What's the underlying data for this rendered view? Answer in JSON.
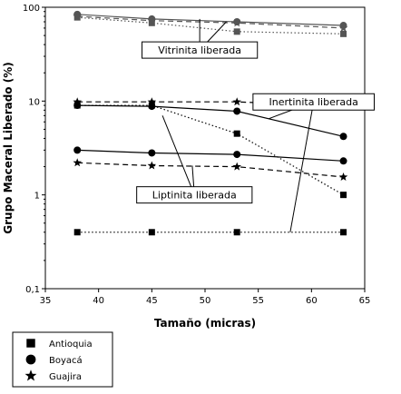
{
  "chart_data": {
    "type": "line",
    "title": "",
    "xlabel": "Tamaño (micras)",
    "ylabel": "Grupo Maceral Liberado (%)",
    "xlim": [
      35,
      65
    ],
    "ylim": [
      0.1,
      100
    ],
    "y_scale": "log",
    "x_ticks": [
      35,
      40,
      45,
      50,
      55,
      60,
      65
    ],
    "y_ticks": [
      0.1,
      1,
      10,
      100
    ],
    "y_tick_labels": [
      "0,1",
      "1",
      "10",
      "100"
    ],
    "grid": false,
    "legend_position": "bottom-left",
    "legend": [
      {
        "label": "Antioquia",
        "marker": "square"
      },
      {
        "label": "Boyacá",
        "marker": "circle"
      },
      {
        "label": "Guajira",
        "marker": "star"
      }
    ],
    "series": [
      {
        "group": "vitrinita",
        "region": "Antioquia",
        "marker": "square",
        "style": "dotted",
        "color": "#555555",
        "x": [
          38,
          45,
          53,
          63
        ],
        "y": [
          78,
          68,
          55,
          52
        ]
      },
      {
        "group": "vitrinita",
        "region": "Boyacá",
        "marker": "circle",
        "style": "solid",
        "color": "#555555",
        "x": [
          38,
          45,
          53,
          63
        ],
        "y": [
          84,
          75,
          70,
          64
        ]
      },
      {
        "group": "vitrinita",
        "region": "Guajira",
        "marker": "star",
        "style": "dashed",
        "color": "#555555",
        "x": [
          38,
          45,
          53,
          63
        ],
        "y": [
          80,
          72,
          68,
          60
        ]
      },
      {
        "group": "inertinita",
        "region": "Antioquia",
        "marker": "square",
        "style": "dotted",
        "color": "#000000",
        "x": [
          38,
          45,
          53,
          63
        ],
        "y": [
          9.0,
          9.0,
          4.5,
          1.0
        ]
      },
      {
        "group": "inertinita",
        "region": "Boyacá",
        "marker": "circle",
        "style": "solid",
        "color": "#000000",
        "x": [
          38,
          45,
          53,
          63
        ],
        "y": [
          9.0,
          8.8,
          7.8,
          4.2
        ]
      },
      {
        "group": "inertinita",
        "region": "Guajira",
        "marker": "star",
        "style": "dashed",
        "color": "#000000",
        "x": [
          38,
          45,
          53,
          63
        ],
        "y": [
          9.8,
          9.8,
          9.8,
          8.8
        ]
      },
      {
        "group": "liptinita",
        "region": "Antioquia",
        "marker": "square",
        "style": "dotted",
        "color": "#000000",
        "x": [
          38,
          45,
          53,
          63
        ],
        "y": [
          0.4,
          0.4,
          0.4,
          0.4
        ]
      },
      {
        "group": "liptinita",
        "region": "Boyacá",
        "marker": "circle",
        "style": "solid",
        "color": "#000000",
        "x": [
          38,
          45,
          53,
          63
        ],
        "y": [
          3.0,
          2.8,
          2.7,
          2.3
        ]
      },
      {
        "group": "liptinita",
        "region": "Guajira",
        "marker": "star",
        "style": "dashed",
        "color": "#000000",
        "x": [
          38,
          45,
          53,
          63
        ],
        "y": [
          2.2,
          2.05,
          2.0,
          1.55
        ]
      }
    ],
    "annotations": [
      {
        "text": "Vitrinita liberada",
        "anchor_x": 49.5,
        "anchor_y": 35,
        "targets": [
          [
            49.5,
            75
          ],
          [
            52,
            70
          ]
        ]
      },
      {
        "text": "Inertinita liberada",
        "anchor_x": 60.2,
        "anchor_y": 9.8,
        "targets": [
          [
            56,
            6.5
          ],
          [
            61.5,
            8.8
          ],
          [
            58,
            0.4
          ]
        ]
      },
      {
        "text": "Liptinita liberada",
        "anchor_x": 49,
        "anchor_y": 1.0,
        "targets": [
          [
            46,
            7.0
          ],
          [
            48.8,
            2.05
          ]
        ]
      }
    ]
  }
}
